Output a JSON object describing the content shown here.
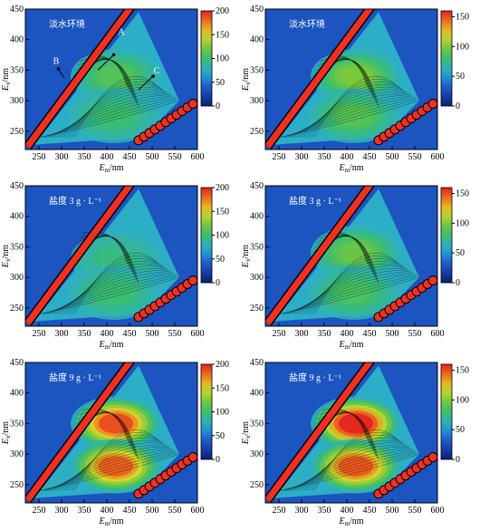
{
  "chart_data": {
    "type": "heatmap",
    "layout": "3 rows x 2 columns",
    "x_ticks": [
      250,
      300,
      350,
      400,
      450,
      500,
      550,
      600
    ],
    "y_ticks": [
      250,
      300,
      350,
      400,
      450
    ],
    "xlim": [
      220,
      600
    ],
    "ylim": [
      220,
      450
    ],
    "xlabel_main": "E",
    "xlabel_sub": "m",
    "xlabel_unit": "/nm",
    "ylabel_main": "E",
    "ylabel_sub": "x",
    "ylabel_unit": "/nm",
    "panels": [
      {
        "title": "淡水环境",
        "cb_ticks": [
          0,
          50,
          100,
          150,
          200
        ],
        "cb_max": 200,
        "annotations": [
          {
            "label": "A",
            "x": 432,
            "y": 408
          },
          {
            "label": "B",
            "x": 288,
            "y": 360
          },
          {
            "label": "C",
            "x": 510,
            "y": 345
          }
        ],
        "peaks": [
          {
            "ex": 340,
            "em": 420,
            "intensity": 110
          },
          {
            "ex": 275,
            "em": 415,
            "intensity": 100
          }
        ]
      },
      {
        "title": "淡水环境",
        "cb_ticks": [
          0,
          50,
          100,
          150
        ],
        "cb_max": 160,
        "annotations": [],
        "peaks": [
          {
            "ex": 340,
            "em": 420,
            "intensity": 100
          },
          {
            "ex": 275,
            "em": 415,
            "intensity": 90
          }
        ]
      },
      {
        "title": "盐度 3 g · L⁻¹",
        "cb_ticks": [
          0,
          50,
          100,
          150,
          200
        ],
        "cb_max": 200,
        "annotations": [],
        "peaks": [
          {
            "ex": 330,
            "em": 420,
            "intensity": 95
          },
          {
            "ex": 275,
            "em": 415,
            "intensity": 100
          }
        ]
      },
      {
        "title": "盐度 3 g · L⁻¹",
        "cb_ticks": [
          0,
          50,
          100,
          150
        ],
        "cb_max": 160,
        "annotations": [],
        "peaks": [
          {
            "ex": 340,
            "em": 420,
            "intensity": 95
          },
          {
            "ex": 275,
            "em": 415,
            "intensity": 85
          }
        ]
      },
      {
        "title": "盐度 9 g · L⁻¹",
        "cb_ticks": [
          0,
          50,
          100,
          150,
          200
        ],
        "cb_max": 200,
        "annotations": [],
        "peaks": [
          {
            "ex": 350,
            "em": 420,
            "intensity": 190
          },
          {
            "ex": 280,
            "em": 420,
            "intensity": 185
          }
        ]
      },
      {
        "title": "盐度 9 g · L⁻¹",
        "cb_ticks": [
          0,
          50,
          100,
          150
        ],
        "cb_max": 160,
        "annotations": [],
        "peaks": [
          {
            "ex": 350,
            "em": 420,
            "intensity": 165
          },
          {
            "ex": 280,
            "em": 420,
            "intensity": 150
          }
        ]
      }
    ]
  }
}
